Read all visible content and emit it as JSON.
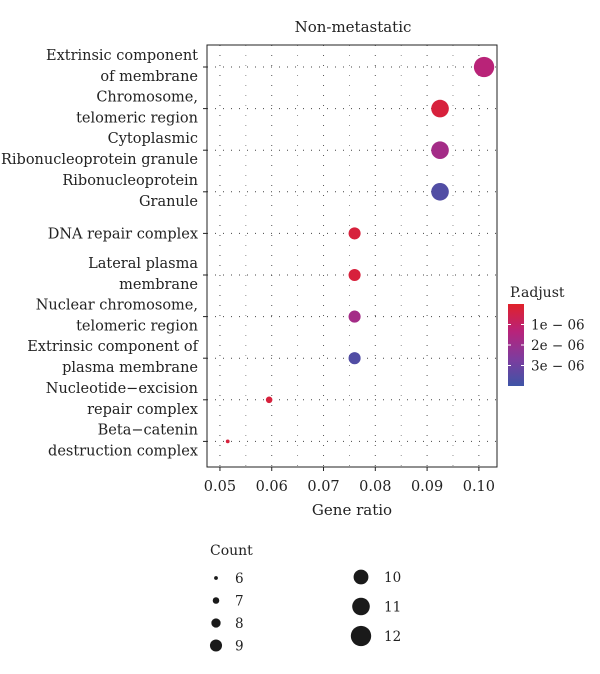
{
  "chart_data": {
    "type": "scatter",
    "title": "Non-metastatic",
    "xlabel": "Gene ratio",
    "ylabel": "",
    "xlim": [
      0.0475,
      0.1035
    ],
    "xticks": [
      "0.05",
      "0.06",
      "0.07",
      "0.08",
      "0.09",
      "0.10"
    ],
    "xtick_values": [
      0.05,
      0.06,
      0.07,
      0.08,
      0.09,
      0.1
    ],
    "grid": true,
    "categories": [
      [
        "Extrinsic component",
        "of membrane"
      ],
      [
        "Chromosome,",
        "telomeric region"
      ],
      [
        "Cytoplasmic",
        "Ribonucleoprotein granule"
      ],
      [
        "Ribonucleoprotein",
        "Granule"
      ],
      [
        "DNA repair complex"
      ],
      [
        "Lateral plasma",
        "membrane"
      ],
      [
        "Nuclear chromosome,",
        "telomeric region"
      ],
      [
        "Extrinsic component of",
        "plasma membrane"
      ],
      [
        "Nucleotide−excision",
        "repair complex"
      ],
      [
        "Beta−catenin",
        "destruction complex"
      ]
    ],
    "points": [
      {
        "category": 0,
        "x": 0.101,
        "count": 12,
        "padjust": 1.3e-06
      },
      {
        "category": 1,
        "x": 0.0925,
        "count": 11,
        "padjust": 3e-07
      },
      {
        "category": 2,
        "x": 0.0925,
        "count": 11,
        "padjust": 1.8e-06
      },
      {
        "category": 3,
        "x": 0.0925,
        "count": 11,
        "padjust": 3.6e-06
      },
      {
        "category": 4,
        "x": 0.076,
        "count": 9,
        "padjust": 3e-07
      },
      {
        "category": 5,
        "x": 0.076,
        "count": 9,
        "padjust": 3e-07
      },
      {
        "category": 6,
        "x": 0.076,
        "count": 9,
        "padjust": 1.8e-06
      },
      {
        "category": 7,
        "x": 0.076,
        "count": 9,
        "padjust": 3.6e-06
      },
      {
        "category": 8,
        "x": 0.0595,
        "count": 7,
        "padjust": 3e-07
      },
      {
        "category": 9,
        "x": 0.0515,
        "count": 6,
        "padjust": 3e-07
      }
    ],
    "color_legend": {
      "title": "P.adjust",
      "ticks": [
        "1e − 06",
        "2e − 06",
        "3e − 06"
      ],
      "tick_values": [
        1e-06,
        2e-06,
        3e-06
      ],
      "range": [
        0,
        4e-06
      ],
      "colors": [
        "#e0212a",
        "#b8237a",
        "#7e3c9e",
        "#3e54a6"
      ]
    },
    "size_legend": {
      "title": "Count",
      "values": [
        6,
        7,
        8,
        9,
        10,
        11,
        12
      ]
    }
  }
}
